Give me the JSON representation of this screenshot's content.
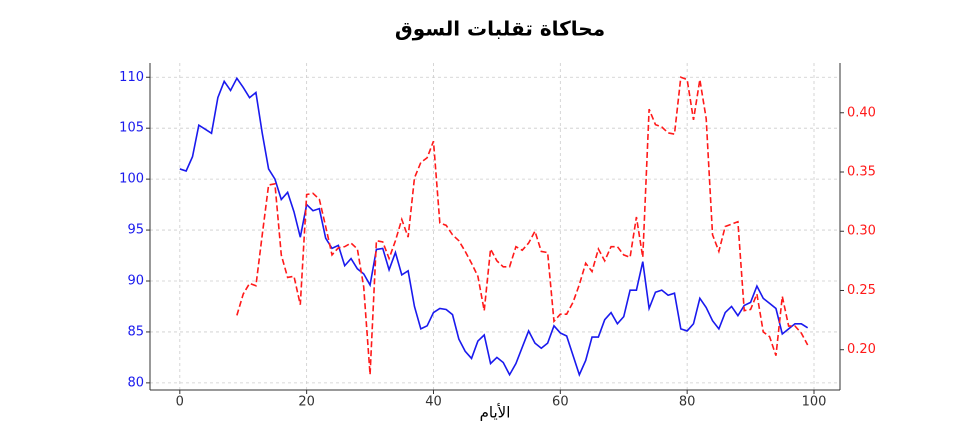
{
  "chart_data": {
    "type": "line",
    "title": "محاكاة تقلبات السوق",
    "x_label": "الأيام",
    "x": [
      0,
      1,
      2,
      3,
      4,
      5,
      6,
      7,
      8,
      9,
      10,
      11,
      12,
      13,
      14,
      15,
      16,
      17,
      18,
      19,
      20,
      21,
      22,
      23,
      24,
      25,
      26,
      27,
      28,
      29,
      30,
      31,
      32,
      33,
      34,
      35,
      36,
      37,
      38,
      39,
      40,
      41,
      42,
      43,
      44,
      45,
      46,
      47,
      48,
      49,
      50,
      51,
      52,
      53,
      54,
      55,
      56,
      57,
      58,
      59,
      60,
      61,
      62,
      63,
      64,
      65,
      66,
      67,
      68,
      69,
      70,
      71,
      72,
      73,
      74,
      75,
      76,
      77,
      78,
      79,
      80,
      81,
      82,
      83,
      84,
      85,
      86,
      87,
      88,
      89,
      90,
      91,
      92,
      93,
      94,
      95,
      96,
      97,
      98,
      99
    ],
    "series": [
      {
        "color": "#1a1aee",
        "style": "solid",
        "axis": "y",
        "values": [
          101,
          100.8,
          102.2,
          105.3,
          104.9,
          104.5,
          108,
          109.6,
          108.7,
          109.9,
          109,
          108,
          108.5,
          104.5,
          101,
          100,
          98,
          98.7,
          96.8,
          94.3,
          97.5,
          96.9,
          97.1,
          94.2,
          93.2,
          93.5,
          91.5,
          92.2,
          91.2,
          90.7,
          89.6,
          93.1,
          93.2,
          91.1,
          92.8,
          90.6,
          91,
          87.5,
          85.3,
          85.6,
          86.9,
          87.3,
          87.2,
          86.7,
          84.3,
          83.1,
          82.4,
          84.1,
          84.7,
          81.9,
          82.5,
          82,
          80.8,
          81.9,
          83.5,
          85.1,
          83.9,
          83.4,
          83.9,
          85.6,
          84.9,
          84.6,
          82.7,
          80.8,
          82.2,
          84.5,
          84.5,
          86.2,
          86.9,
          85.8,
          86.5,
          89.1,
          89.1,
          91.9,
          87.3,
          88.9,
          89.1,
          88.6,
          88.8,
          85.3,
          85.1,
          85.8,
          88.3,
          87.4,
          86.1,
          85.3,
          86.9,
          87.5,
          86.6,
          87.6,
          87.9,
          89.5,
          88.3,
          87.8,
          87.3,
          84.8,
          85.3,
          85.8,
          85.8,
          85.4
        ]
      },
      {
        "color": "#ff1a1a",
        "style": "dashed",
        "axis": "y2",
        "values": [
          null,
          null,
          null,
          null,
          null,
          null,
          null,
          null,
          null,
          0.229,
          0.247,
          0.256,
          0.254,
          0.297,
          0.339,
          0.34,
          0.28,
          0.261,
          0.262,
          0.238,
          0.331,
          0.332,
          0.327,
          0.304,
          0.28,
          0.286,
          0.287,
          0.29,
          0.285,
          0.253,
          0.179,
          0.292,
          0.291,
          0.277,
          0.292,
          0.31,
          0.295,
          0.345,
          0.358,
          0.362,
          0.376,
          0.307,
          0.305,
          0.297,
          0.292,
          0.283,
          0.273,
          0.262,
          0.233,
          0.285,
          0.275,
          0.27,
          0.27,
          0.287,
          0.284,
          0.29,
          0.3,
          0.283,
          0.282,
          0.224,
          0.23,
          0.23,
          0.24,
          0.255,
          0.273,
          0.266,
          0.285,
          0.275,
          0.287,
          0.287,
          0.28,
          0.278,
          0.312,
          0.278,
          0.403,
          0.39,
          0.388,
          0.383,
          0.382,
          0.43,
          0.428,
          0.394,
          0.428,
          0.395,
          0.297,
          0.283,
          0.304,
          0.306,
          0.308,
          0.233,
          0.234,
          0.247,
          0.215,
          0.211,
          0.195,
          0.245,
          0.22,
          0.22,
          0.214,
          0.204
        ]
      }
    ],
    "xlim": [
      -4.7,
      104.1
    ],
    "xticks": [
      0,
      20,
      40,
      60,
      80,
      100
    ],
    "ylim": [
      79.3,
      111.4
    ],
    "yticks": [
      80,
      85,
      90,
      95,
      100,
      105,
      110
    ],
    "y2lim": [
      0.166,
      0.442
    ],
    "y2ticks": [
      {
        "value": 0.2,
        "label": "0.20"
      },
      {
        "value": 0.25,
        "label": "0.25"
      },
      {
        "value": 0.3,
        "label": "0.30"
      },
      {
        "value": 0.35,
        "label": "0.35"
      },
      {
        "value": 0.4,
        "label": "0.40"
      }
    ],
    "grid": true
  }
}
